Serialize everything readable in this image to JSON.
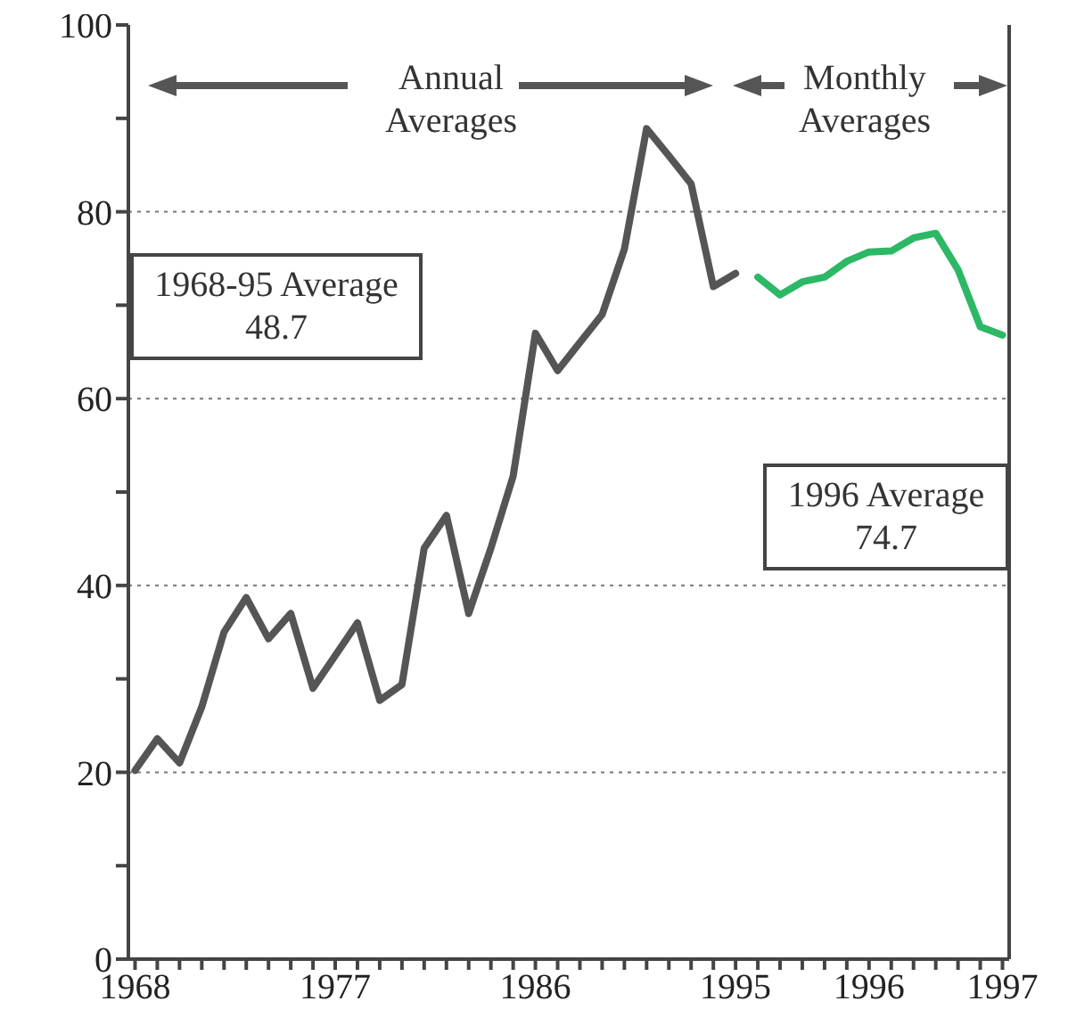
{
  "chart_data": {
    "type": "line",
    "categories": [
      "1968",
      null,
      null,
      null,
      null,
      null,
      null,
      null,
      null,
      "1977",
      null,
      null,
      null,
      null,
      null,
      null,
      null,
      null,
      "1986",
      null,
      null,
      null,
      null,
      null,
      null,
      null,
      null,
      "1995",
      null,
      null,
      null,
      null,
      null,
      "1996",
      null,
      null,
      null,
      null,
      null,
      "1997"
    ],
    "series": [
      {
        "color": "#555555",
        "values": [
          20.2,
          23.6,
          21,
          27,
          35,
          38.7,
          34.3,
          37,
          29,
          32.5,
          36,
          27.7,
          29.4,
          44,
          47.5,
          37,
          44,
          51.7,
          67,
          63,
          66,
          69,
          76,
          88.9,
          86,
          83,
          72,
          73.4,
          null,
          null,
          null,
          null,
          null,
          null,
          null,
          null,
          null,
          null,
          null,
          null
        ]
      },
      {
        "color": "#2db866",
        "values": [
          null,
          null,
          null,
          null,
          null,
          null,
          null,
          null,
          null,
          null,
          null,
          null,
          null,
          null,
          null,
          null,
          null,
          null,
          null,
          null,
          null,
          null,
          null,
          null,
          null,
          null,
          null,
          null,
          73,
          71.1,
          72.5,
          73,
          74.7,
          75.7,
          75.8,
          77.2,
          77.7,
          73.8,
          67.7,
          66.8
        ]
      }
    ],
    "ylim": [
      0,
      100
    ],
    "yticks": [
      0,
      {
        "value": 10,
        "label": null
      },
      20,
      {
        "value": 30,
        "label": null
      },
      40,
      {
        "value": 50,
        "label": null
      },
      60,
      {
        "value": 70,
        "label": null
      },
      80,
      {
        "value": 90,
        "label": null
      },
      100
    ],
    "grid": "y",
    "legend": false,
    "marker": "none",
    "line_style": "solid",
    "annotations": [
      "Annual\nAverages",
      "Monthly\nAverages",
      "1968-95 Average\n48.7",
      "1996 Average\n74.7"
    ]
  }
}
